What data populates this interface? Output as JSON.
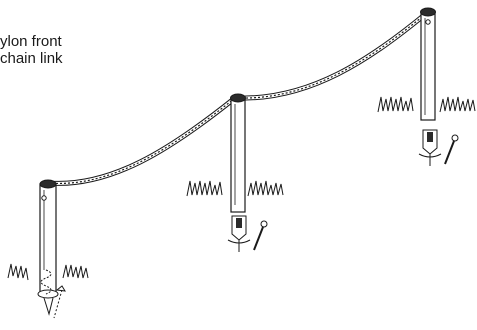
{
  "caption": {
    "line1": "ylon front",
    "line2": "chain link"
  },
  "figure": {
    "posts": [
      {
        "name": "post-left"
      },
      {
        "name": "post-middle"
      },
      {
        "name": "post-right"
      }
    ],
    "chain": {
      "name": "chain-link"
    },
    "anchors": [
      {
        "name": "ground-anchor-middle"
      },
      {
        "name": "ground-anchor-right"
      }
    ],
    "colors": {
      "stroke": "#1a1a1a",
      "fill": "#ffffff",
      "cap": "#2b2b2b"
    }
  }
}
